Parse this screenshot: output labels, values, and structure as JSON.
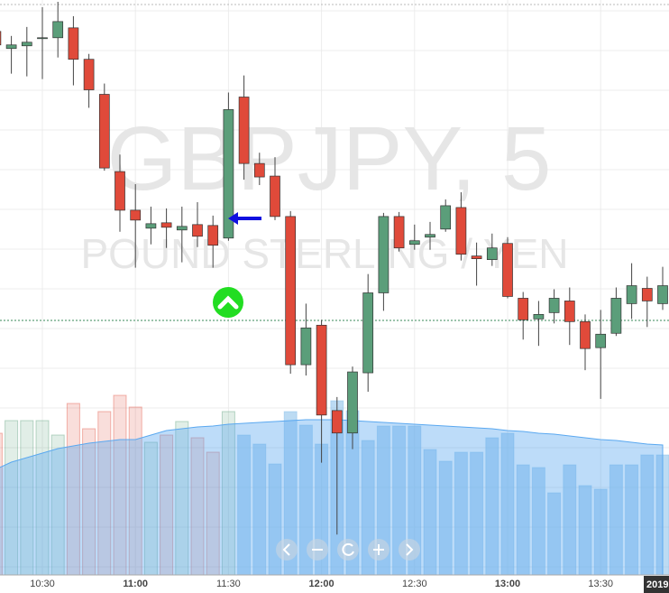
{
  "chart_data": {
    "type": "candlestick",
    "watermark_title": "GBPJPY, 5",
    "watermark_subtitle": "POUND STERLING / YEN",
    "categories": [
      null,
      null,
      null,
      "10:30",
      null,
      null,
      null,
      null,
      null,
      "11:00",
      null,
      null,
      null,
      null,
      null,
      "11:30",
      null,
      null,
      null,
      null,
      null,
      "12:00",
      null,
      null,
      null,
      null,
      null,
      "12:30",
      null,
      null,
      null,
      null,
      null,
      "13:00",
      null,
      null,
      null,
      null,
      null,
      "13:30",
      null,
      null,
      null,
      null
    ],
    "open": [
      605,
      586,
      589,
      597,
      598,
      609,
      574,
      535,
      449,
      406,
      386,
      392,
      384,
      390,
      389,
      375,
      532,
      458,
      444,
      399,
      234,
      278,
      183,
      158,
      225,
      314,
      399,
      368,
      376,
      385,
      409,
      355,
      351,
      369,
      308,
      285,
      292,
      305,
      282,
      253,
      269,
      302,
      319,
      302
    ],
    "high": [
      610,
      600,
      610,
      632,
      638,
      622,
      580,
      547,
      468,
      435,
      410,
      408,
      410,
      415,
      400,
      537,
      556,
      470,
      465,
      405,
      302,
      284,
      198,
      232,
      335,
      403,
      404,
      390,
      393,
      418,
      426,
      370,
      380,
      376,
      315,
      305,
      318,
      320,
      290,
      295,
      320,
      347,
      332,
      343
    ],
    "low": [
      585,
      558,
      555,
      552,
      576,
      545,
      520,
      450,
      382,
      342,
      368,
      364,
      348,
      365,
      342,
      372,
      440,
      434,
      395,
      224,
      222,
      125,
      45,
      140,
      204,
      294,
      360,
      362,
      362,
      382,
      350,
      322,
      344,
      308,
      262,
      255,
      280,
      256,
      228,
      196,
      266,
      285,
      276,
      295
    ],
    "close": [
      590,
      590,
      593,
      598,
      616,
      574,
      540,
      453,
      406,
      395,
      391,
      387,
      388,
      377,
      367,
      518,
      458,
      443,
      399,
      234,
      275,
      178,
      158,
      226,
      314,
      399,
      364,
      372,
      379,
      411,
      357,
      352,
      364,
      310,
      284,
      290,
      308,
      282,
      252,
      268,
      308,
      322,
      305,
      322
    ],
    "volume": [
      157,
      171,
      171,
      171,
      155,
      190,
      162,
      181,
      199,
      186,
      147,
      155,
      170,
      152,
      136,
      181,
      155,
      145,
      123,
      181,
      166,
      145,
      193,
      182,
      149,
      165,
      165,
      165,
      139,
      126,
      136,
      136,
      152,
      157,
      122,
      119,
      91,
      122,
      99,
      95,
      122,
      122,
      133,
      133
    ],
    "volume_ma": [
      117,
      125,
      130,
      135,
      140,
      143,
      146,
      148,
      150,
      150,
      155,
      160,
      162,
      164,
      165,
      167,
      168,
      169,
      170,
      171,
      172,
      172,
      172,
      171,
      170,
      169,
      168,
      167,
      166,
      165,
      164,
      163,
      162,
      160,
      159,
      157,
      156,
      154,
      152,
      150,
      149,
      147,
      145,
      144
    ],
    "ylim": [
      0,
      640
    ],
    "y2lim": [
      0,
      637
    ],
    "up_color": "#5b9e7a",
    "down_color": "#e04a3a",
    "volume_color": "#7ab8e8",
    "date_tag": "2019"
  }
}
